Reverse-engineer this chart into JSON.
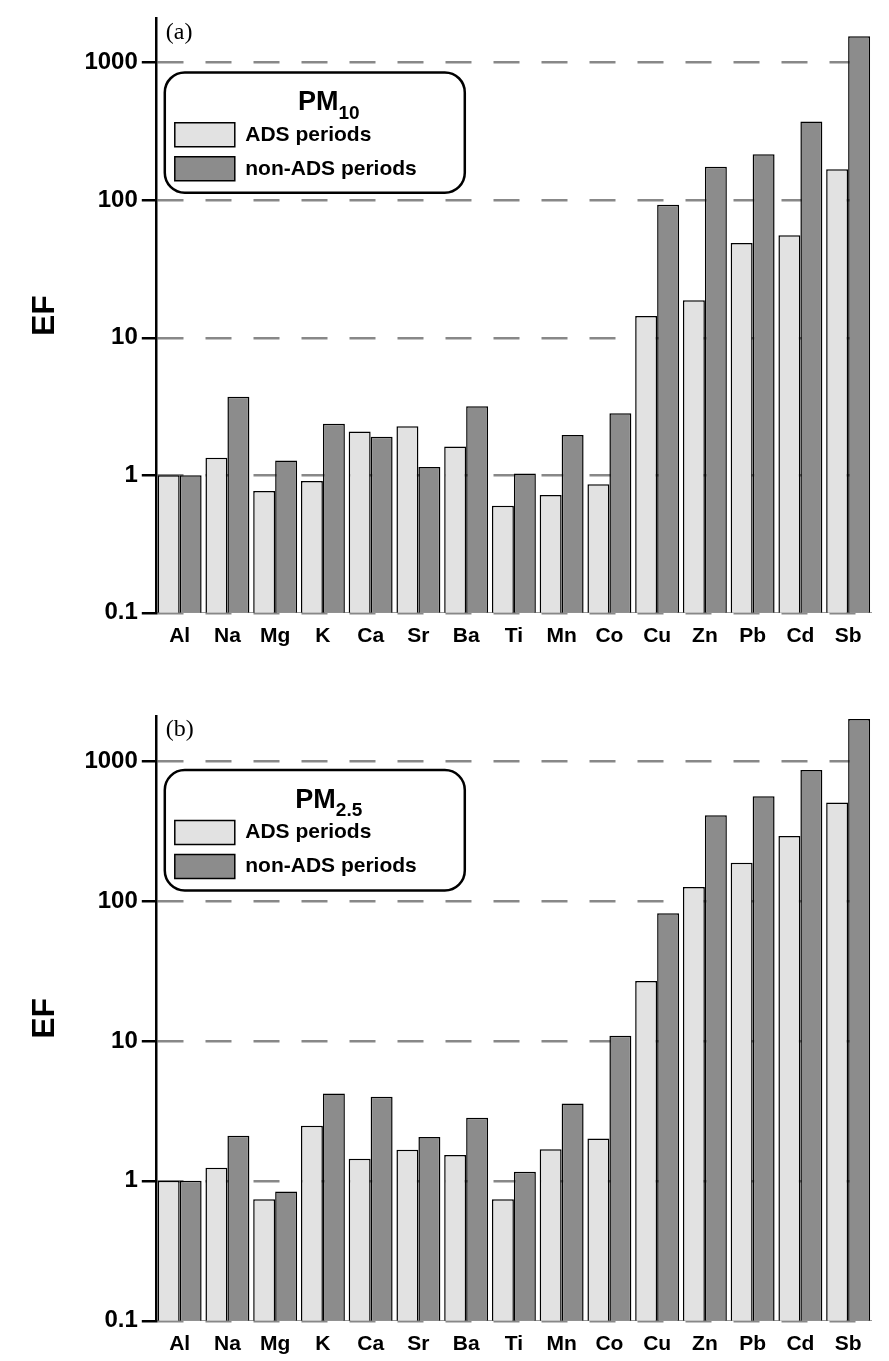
{
  "chart_data": [
    {
      "type": "bar",
      "title": "(a)",
      "ylabel": "EF",
      "categories": [
        "Al",
        "Na",
        "Mg",
        "K",
        "Ca",
        "Sr",
        "Ba",
        "Ti",
        "Mn",
        "Co",
        "Cu",
        "Zn",
        "Pb",
        "Cd",
        "Sb"
      ],
      "legend_title": "PM$_{10}$",
      "legend": "top left",
      "log": true,
      "grid": "y",
      "ylim": [
        0.1,
        2100
      ],
      "yticks": [
        0.1,
        1,
        10,
        100,
        1000
      ],
      "series": [
        {
          "name": "ADS periods",
          "color": "#e2e2e2",
          "values": [
            1,
            1.34,
            0.77,
            0.91,
            2.08,
            2.27,
            1.62,
            0.6,
            0.72,
            0.86,
            14.4,
            18.7,
            48.8,
            55.7,
            168
          ]
        },
        {
          "name": "non-ADS periods",
          "color": "#8c8c8c",
          "values": [
            1,
            3.73,
            1.28,
            2.37,
            1.91,
            1.15,
            3.18,
            1.03,
            1.96,
            2.82,
            92.6,
            175,
            216,
            374,
            1560
          ]
        }
      ]
    },
    {
      "type": "bar",
      "title": "(b)",
      "ylabel": "EF",
      "categories": [
        "Al",
        "Na",
        "Mg",
        "K",
        "Ca",
        "Sr",
        "Ba",
        "Ti",
        "Mn",
        "Co",
        "Cu",
        "Zn",
        "Pb",
        "Cd",
        "Sb"
      ],
      "legend_title": "PM$_{2.5}$",
      "legend": "top left",
      "log": true,
      "grid": "y",
      "ylim": [
        0.1,
        2100
      ],
      "yticks": [
        0.1,
        1,
        10,
        100,
        1000
      ],
      "series": [
        {
          "name": "ADS periods",
          "color": "#e2e2e2",
          "values": [
            1,
            1.24,
            0.74,
            2.48,
            1.44,
            1.67,
            1.53,
            0.74,
            1.68,
            2.01,
            26.8,
            126,
            188,
            291,
            505
          ]
        },
        {
          "name": "non-ADS periods",
          "color": "#8c8c8c",
          "values": [
            1,
            2.1,
            0.84,
            4.21,
            3.99,
            2.06,
            2.83,
            1.16,
            3.57,
            10.9,
            81.6,
            410,
            561,
            863,
            2000
          ]
        }
      ]
    }
  ]
}
